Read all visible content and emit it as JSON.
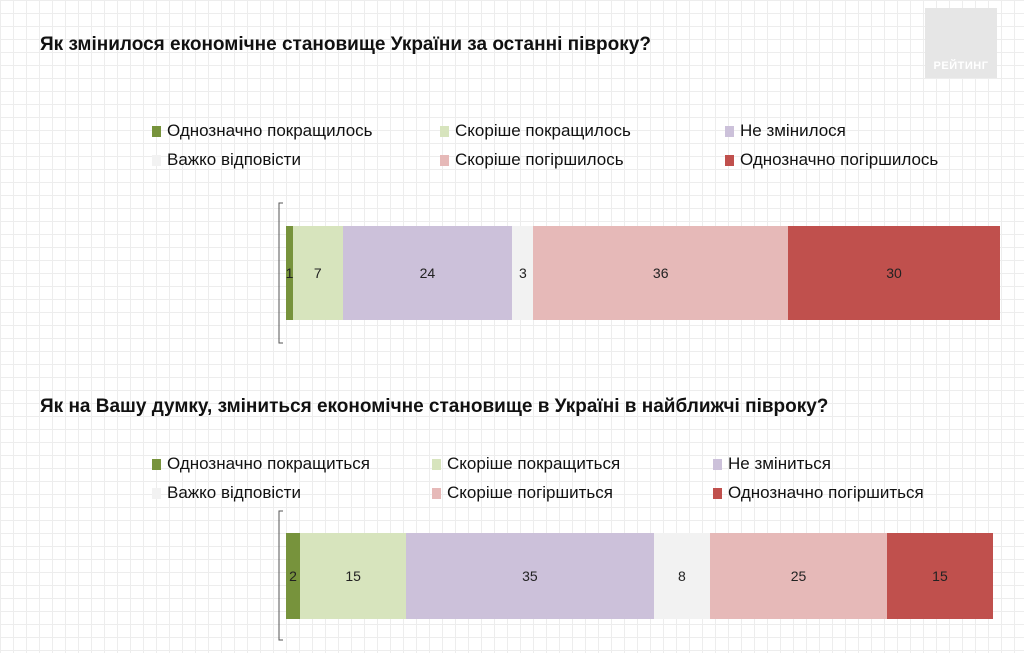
{
  "brand": {
    "label": "РЕЙТИНГ"
  },
  "colors": {
    "definitely_better": "#77933c",
    "rather_better": "#d7e4bd",
    "no_change": "#ccc1da",
    "hard_to_say": "#f2f2f2",
    "rather_worse": "#e6b9b8",
    "definitely_worse": "#c0504d"
  },
  "chart_data": [
    {
      "type": "bar",
      "orientation": "horizontal",
      "stacked": true,
      "title": "Як змінилося економічне становище України за останні півроку?",
      "legend_position": "top",
      "xlim": [
        0,
        100
      ],
      "series": [
        {
          "name": "Однозначно покращилось",
          "value": 1,
          "color": "#77933c"
        },
        {
          "name": "Скоріше покращилось",
          "value": 7,
          "color": "#d7e4bd"
        },
        {
          "name": "Не змінилося",
          "value": 24,
          "color": "#ccc1da"
        },
        {
          "name": "Важко відповісти",
          "value": 3,
          "color": "#f2f2f2"
        },
        {
          "name": "Скоріше погіршилось",
          "value": 36,
          "color": "#e6b9b8"
        },
        {
          "name": "Однозначно погіршилось",
          "value": 30,
          "color": "#c0504d"
        }
      ]
    },
    {
      "type": "bar",
      "orientation": "horizontal",
      "stacked": true,
      "title": "Як на Вашу думку, зміниться економічне становище в Україні в найближчі півроку?",
      "legend_position": "top",
      "xlim": [
        0,
        100
      ],
      "series": [
        {
          "name": "Однозначно покращиться",
          "value": 2,
          "color": "#77933c"
        },
        {
          "name": "Скоріше покращиться",
          "value": 15,
          "color": "#d7e4bd"
        },
        {
          "name": "Не зміниться",
          "value": 35,
          "color": "#ccc1da"
        },
        {
          "name": "Важко відповісти",
          "value": 8,
          "color": "#f2f2f2"
        },
        {
          "name": "Скоріше погіршиться",
          "value": 25,
          "color": "#e6b9b8"
        },
        {
          "name": "Однозначно погіршиться",
          "value": 15,
          "color": "#c0504d"
        }
      ]
    }
  ]
}
